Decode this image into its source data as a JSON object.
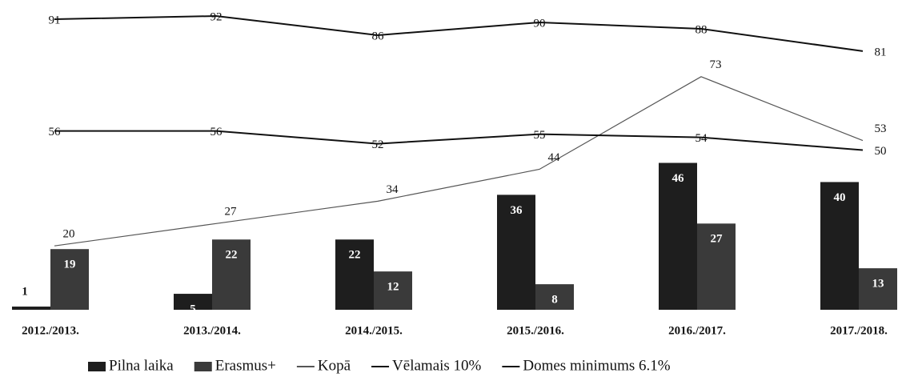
{
  "chart_data": {
    "type": "bar-line",
    "categories": [
      "2012./2013.",
      "2013./2014.",
      "2014./2015.",
      "2015./2016.",
      "2016./2017.",
      "2017./2018."
    ],
    "series": [
      {
        "name": "Pilna laika",
        "type": "bar",
        "color": "#1e1e1e",
        "values": [
          1,
          5,
          22,
          36,
          46,
          40
        ]
      },
      {
        "name": "Erasmus+",
        "type": "bar",
        "color": "#3a3a3a",
        "values": [
          19,
          22,
          12,
          8,
          27,
          13
        ]
      },
      {
        "name": "Kopā",
        "type": "line",
        "color": "#555555",
        "values": [
          20,
          27,
          34,
          44,
          73,
          53
        ]
      },
      {
        "name": "Vēlamais 10%",
        "type": "line",
        "color": "#111111",
        "values": [
          91,
          92,
          86,
          90,
          88,
          81
        ]
      },
      {
        "name": "Domes minimums 6.1%",
        "type": "line",
        "color": "#111111",
        "values": [
          56,
          56,
          52,
          55,
          54,
          50
        ]
      }
    ],
    "legend": "bottom"
  }
}
